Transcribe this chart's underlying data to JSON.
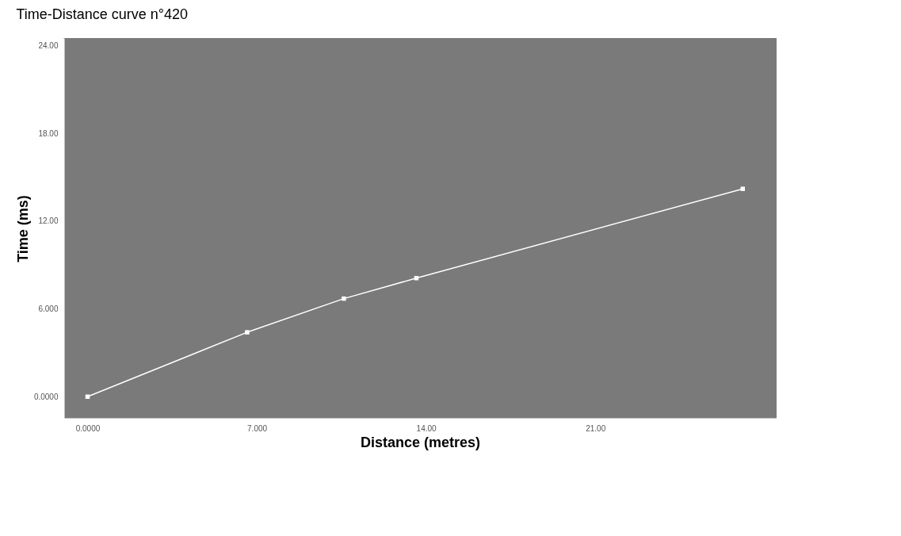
{
  "chart_data": {
    "type": "line",
    "title": "Time-Distance curve n°420",
    "xlabel": "Distance (metres)",
    "ylabel": "Time (ms)",
    "x": [
      0,
      6.6,
      10.6,
      13.6,
      27.1
    ],
    "series": [
      {
        "color": "#ffffff",
        "values": [
          0,
          4.4,
          6.7,
          8.1,
          14.2
        ]
      }
    ],
    "xlim": [
      -1,
      28.5
    ],
    "ylim": [
      -1.5,
      24.5
    ],
    "xticks": [
      {
        "value": 0,
        "label": "0.0000"
      },
      {
        "value": 7,
        "label": "7.000"
      },
      {
        "value": 14,
        "label": "14.00"
      },
      {
        "value": 21,
        "label": "21.00"
      }
    ],
    "yticks": [
      {
        "value": 0,
        "label": "0.0000"
      },
      {
        "value": 6,
        "label": "6.000"
      },
      {
        "value": 12,
        "label": "12.00"
      },
      {
        "value": 18,
        "label": "18.00"
      },
      {
        "value": 24,
        "label": "24.00"
      }
    ],
    "marker": "square",
    "grid": false
  }
}
